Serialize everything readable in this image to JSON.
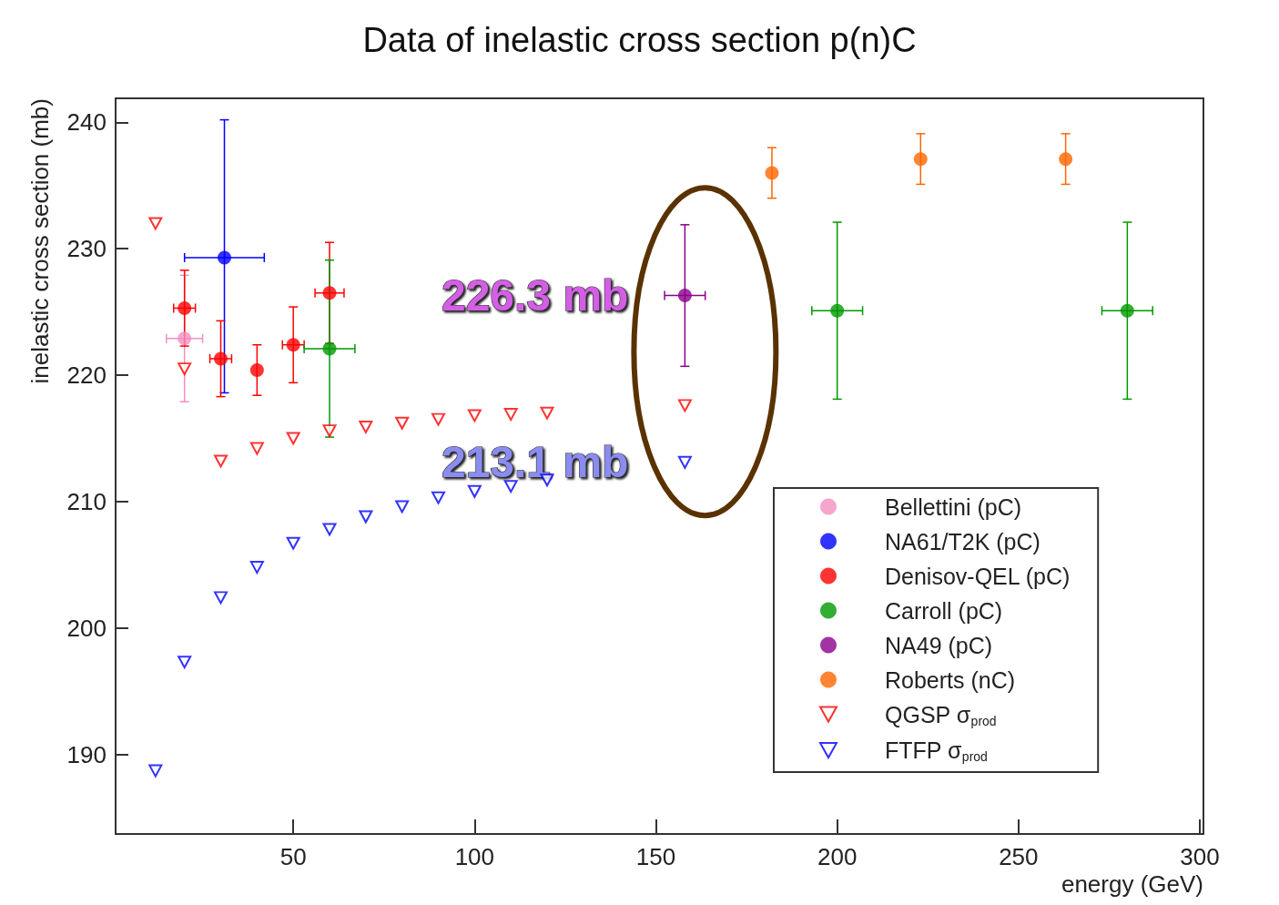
{
  "chart_data": {
    "type": "scatter",
    "title": "Data of inelastic cross section p(n)C",
    "xlabel": "energy (GeV)",
    "ylabel": "inelastic cross section (mb)",
    "xlim": [
      1,
      301
    ],
    "xticks": [
      50,
      100,
      150,
      200,
      250,
      300
    ],
    "ylim": [
      183.7,
      241.9
    ],
    "yticks": [
      190,
      200,
      210,
      220,
      230,
      240
    ],
    "grid": false,
    "legend": "bottom right",
    "series": [
      {
        "name": "Bellettini (pC)",
        "color": "#f48fc0",
        "marker": "circle",
        "x": [
          20
        ],
        "values": [
          222.9
        ],
        "errors": [
          5
        ],
        "xerrors": [
          5
        ]
      },
      {
        "name": "NA61/T2K (pC)",
        "color": "#0000ff",
        "marker": "circle",
        "x": [
          31
        ],
        "values": [
          229.3
        ],
        "errors": [
          [
            218.6,
            240.2
          ]
        ],
        "xerrors": [
          11
        ]
      },
      {
        "name": "Denisov-QEL (pC)",
        "color": "#ff0000",
        "marker": "circle",
        "x": [
          20,
          30,
          40,
          50,
          60
        ],
        "values": [
          225.3,
          221.3,
          220.4,
          222.4,
          226.5
        ],
        "errors": [
          3,
          3,
          2,
          3,
          4
        ],
        "xerrors": [
          3,
          3,
          null,
          3,
          4
        ]
      },
      {
        "name": "Carroll (pC)",
        "color": "#009900",
        "marker": "circle",
        "x": [
          60,
          200,
          280
        ],
        "values": [
          222.1,
          225.1,
          225.1
        ],
        "errors": [
          7,
          7,
          7
        ],
        "xerrors": [
          7,
          7,
          7
        ]
      },
      {
        "name": "NA49 (pC)",
        "color": "#8b008b",
        "marker": "circle",
        "x": [
          158
        ],
        "values": [
          226.3
        ],
        "errors": [
          5.6
        ],
        "xerrors": [
          5.6
        ]
      },
      {
        "name": "Roberts (nC)",
        "color": "#ff6600",
        "marker": "circle",
        "x": [
          182,
          223,
          263
        ],
        "values": [
          236,
          237.1,
          237.1
        ],
        "errors": [
          2,
          2,
          2
        ]
      },
      {
        "name": "QGSP σ$_{prod}$",
        "color": "#ff0000",
        "marker": "triangle",
        "x": [
          12,
          20,
          30,
          40,
          50,
          60,
          70,
          80,
          90,
          100,
          110,
          120,
          158
        ],
        "values": [
          232,
          220.5,
          213.2,
          214.2,
          215,
          215.6,
          215.9,
          216.2,
          216.5,
          216.8,
          216.9,
          217,
          217.6
        ]
      },
      {
        "name": "FTFP σ$_{prod}$",
        "color": "#0000ff",
        "marker": "triangle",
        "x": [
          12,
          20,
          30,
          40,
          50,
          60,
          70,
          80,
          90,
          100,
          110,
          120,
          158
        ],
        "values": [
          188.7,
          197.3,
          202.4,
          204.8,
          206.7,
          207.8,
          208.8,
          209.6,
          210.3,
          210.8,
          211.2,
          211.7,
          213.1
        ]
      }
    ],
    "annotations": [
      {
        "text": "226.3 mb",
        "x": 158,
        "y": 226.3
      },
      {
        "text": "213.1 mb",
        "x": 158,
        "y": 213.1
      }
    ]
  }
}
